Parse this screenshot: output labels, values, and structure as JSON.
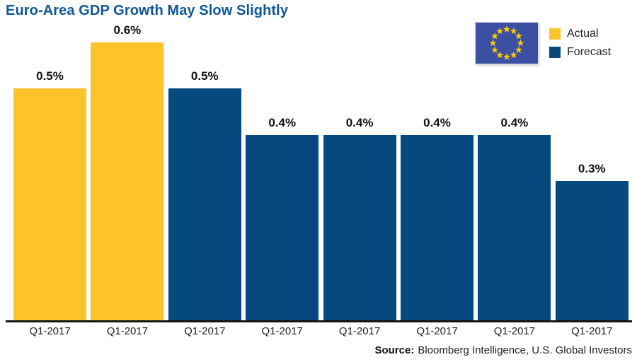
{
  "title": "Euro-Area GDP Growth May Slow Slightly",
  "legend": {
    "flag": {
      "name": "eu-flag",
      "background": "#3B50A3",
      "star_color": "#FFCC00",
      "star_count": 12
    },
    "items": [
      {
        "label": "Actual",
        "color": "#FDC32B"
      },
      {
        "label": "Forecast",
        "color": "#05497E"
      }
    ]
  },
  "source": {
    "prefix": "Source:",
    "text": "Bloomberg Intelligence, U.S. Global Investors"
  },
  "chart_data": {
    "type": "bar",
    "title": "Euro-Area GDP Growth May Slow Slightly",
    "categories": [
      "Q1-2017",
      "Q1-2017",
      "Q1-2017",
      "Q1-2017",
      "Q1-2017",
      "Q1-2017",
      "Q1-2017",
      "Q1-2017"
    ],
    "values": [
      0.5,
      0.6,
      0.5,
      0.4,
      0.4,
      0.4,
      0.4,
      0.3
    ],
    "value_labels": [
      "0.5%",
      "0.6%",
      "0.5%",
      "0.4%",
      "0.4%",
      "0.4%",
      "0.4%",
      "0.3%"
    ],
    "bar_series": [
      "Actual",
      "Actual",
      "Forecast",
      "Forecast",
      "Forecast",
      "Forecast",
      "Forecast",
      "Forecast"
    ],
    "series": [
      {
        "name": "Actual",
        "color": "#FDC32B",
        "values": [
          0.5,
          0.6,
          null,
          null,
          null,
          null,
          null,
          null
        ]
      },
      {
        "name": "Forecast",
        "color": "#05497E",
        "values": [
          null,
          null,
          0.5,
          0.4,
          0.4,
          0.4,
          0.4,
          0.3
        ]
      }
    ],
    "colors": {
      "Actual": "#FDC32B",
      "Forecast": "#05497E"
    },
    "unit": "%",
    "ylim": [
      0,
      0.65
    ],
    "grid": false,
    "legend_position": "top-right",
    "xlabel": "",
    "ylabel": ""
  }
}
